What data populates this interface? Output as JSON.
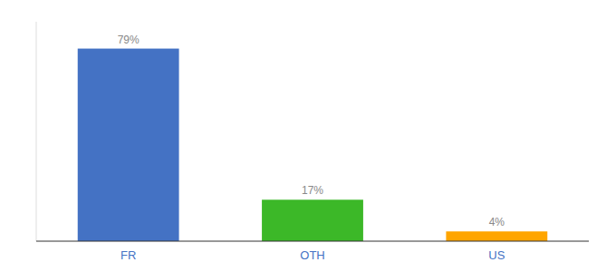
{
  "chart_data": {
    "type": "bar",
    "categories": [
      "FR",
      "OTH",
      "US"
    ],
    "values": [
      79,
      17,
      4
    ],
    "value_labels": [
      "79%",
      "17%",
      "4%"
    ],
    "colors": [
      "#4472C4",
      "#3CB828",
      "#FFA500"
    ],
    "ylim": [
      0,
      90
    ],
    "data_labels": true,
    "tick_labels": "x"
  }
}
